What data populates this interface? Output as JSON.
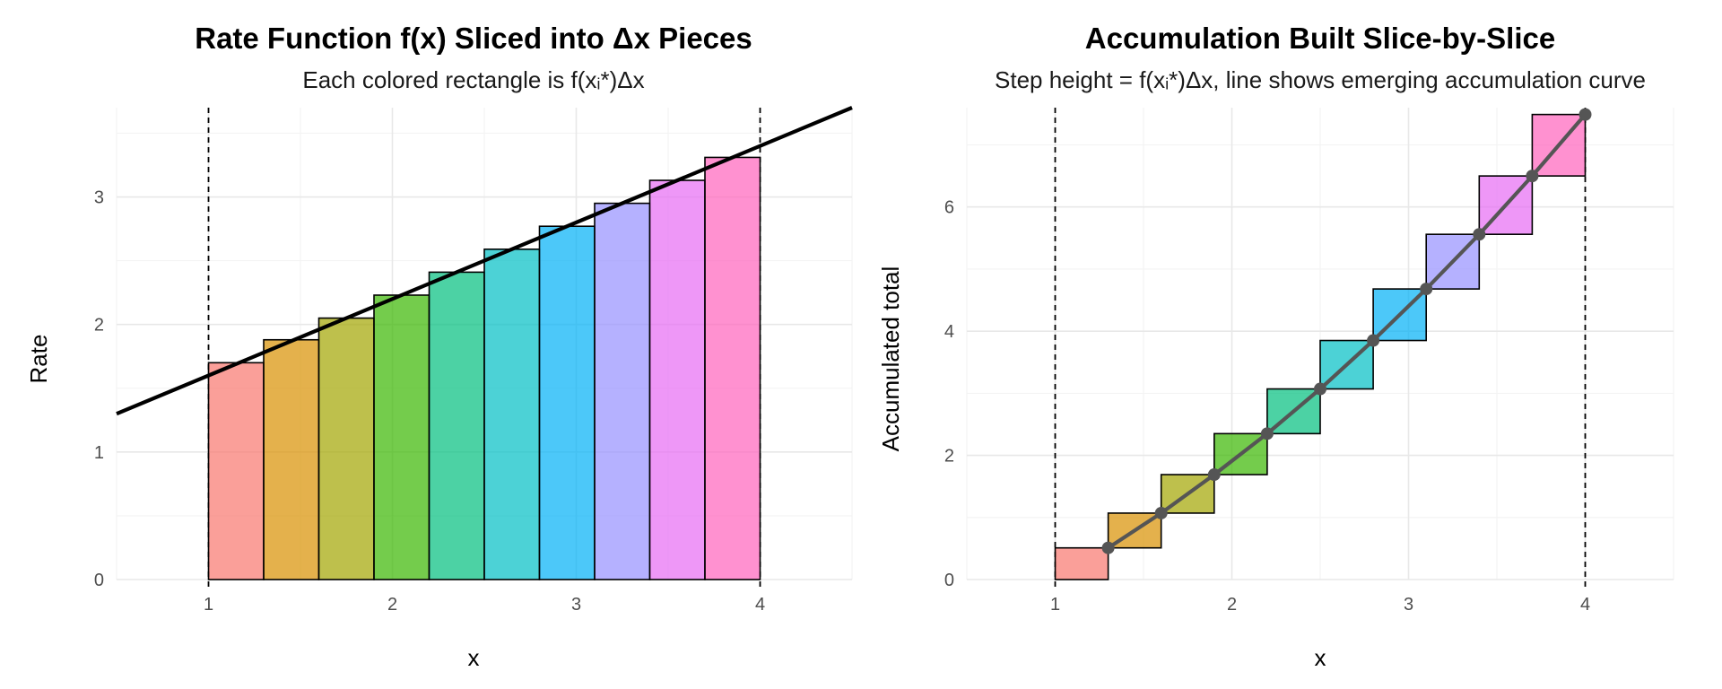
{
  "chart_data": [
    {
      "type": "bar",
      "title": "Rate Function f(x) Sliced into Δx Pieces",
      "subtitle": "Each colored rectangle is f(xᵢ*)Δx",
      "xlabel": "x",
      "ylabel": "Rate",
      "xlim": [
        0.5,
        4.5
      ],
      "ylim": [
        0,
        3.7
      ],
      "x_ticks": [
        1,
        2,
        3,
        4
      ],
      "y_ticks": [
        0,
        1,
        2,
        3
      ],
      "grid": true,
      "vlines": [
        1,
        4
      ],
      "dx": 0.3,
      "bars": [
        {
          "x_start": 1.0,
          "x_end": 1.3,
          "height": 1.7
        },
        {
          "x_start": 1.3,
          "x_end": 1.6,
          "height": 1.88
        },
        {
          "x_start": 1.6,
          "x_end": 1.9,
          "height": 2.05
        },
        {
          "x_start": 1.9,
          "x_end": 2.2,
          "height": 2.23
        },
        {
          "x_start": 2.2,
          "x_end": 2.5,
          "height": 2.41
        },
        {
          "x_start": 2.5,
          "x_end": 2.8,
          "height": 2.59
        },
        {
          "x_start": 2.8,
          "x_end": 3.1,
          "height": 2.77
        },
        {
          "x_start": 3.1,
          "x_end": 3.4,
          "height": 2.95
        },
        {
          "x_start": 3.4,
          "x_end": 3.7,
          "height": 3.13
        },
        {
          "x_start": 3.7,
          "x_end": 4.0,
          "height": 3.31
        }
      ],
      "rate_line": {
        "x": [
          0.5,
          4.5
        ],
        "y": [
          1.3,
          3.7
        ]
      }
    },
    {
      "type": "line",
      "title": "Accumulation Built Slice-by-Slice",
      "subtitle": "Step height = f(xᵢ*)Δx, line shows emerging accumulation curve",
      "xlabel": "x",
      "ylabel": "Accumulated total",
      "xlim": [
        0.5,
        4.5
      ],
      "ylim": [
        0,
        7.6
      ],
      "x_ticks": [
        1,
        2,
        3,
        4
      ],
      "y_ticks": [
        0,
        2,
        4,
        6
      ],
      "grid": true,
      "vlines": [
        1,
        4
      ],
      "steps": [
        {
          "x_start": 1.0,
          "x_end": 1.3,
          "y_bottom": 0.0,
          "y_top": 0.51
        },
        {
          "x_start": 1.3,
          "x_end": 1.6,
          "y_bottom": 0.51,
          "y_top": 1.07
        },
        {
          "x_start": 1.6,
          "x_end": 1.9,
          "y_bottom": 1.07,
          "y_top": 1.69
        },
        {
          "x_start": 1.9,
          "x_end": 2.2,
          "y_bottom": 1.69,
          "y_top": 2.35
        },
        {
          "x_start": 2.2,
          "x_end": 2.5,
          "y_bottom": 2.35,
          "y_top": 3.07
        },
        {
          "x_start": 2.5,
          "x_end": 2.8,
          "y_bottom": 3.07,
          "y_top": 3.85
        },
        {
          "x_start": 2.8,
          "x_end": 3.1,
          "y_bottom": 3.85,
          "y_top": 4.68
        },
        {
          "x_start": 3.1,
          "x_end": 3.4,
          "y_bottom": 4.68,
          "y_top": 5.56
        },
        {
          "x_start": 3.4,
          "x_end": 3.7,
          "y_bottom": 5.56,
          "y_top": 6.5
        },
        {
          "x_start": 3.7,
          "x_end": 4.0,
          "y_bottom": 6.5,
          "y_top": 7.49
        }
      ],
      "points": {
        "x": [
          1.3,
          1.6,
          1.9,
          2.2,
          2.5,
          2.8,
          3.1,
          3.4,
          3.7,
          4.0
        ],
        "y": [
          0.51,
          1.07,
          1.69,
          2.35,
          3.07,
          3.85,
          4.68,
          5.56,
          6.5,
          7.49
        ]
      }
    }
  ],
  "colors": {
    "slices": [
      "#F8766D",
      "#D89000",
      "#A3A500",
      "#39B600",
      "#00BF7D",
      "#00BFC4",
      "#00B0F6",
      "#9590FF",
      "#E76BF3",
      "#FF62BC"
    ],
    "rate_line": "#000000",
    "accumulation_line": "#555555",
    "grid": "#e8e8e8"
  }
}
